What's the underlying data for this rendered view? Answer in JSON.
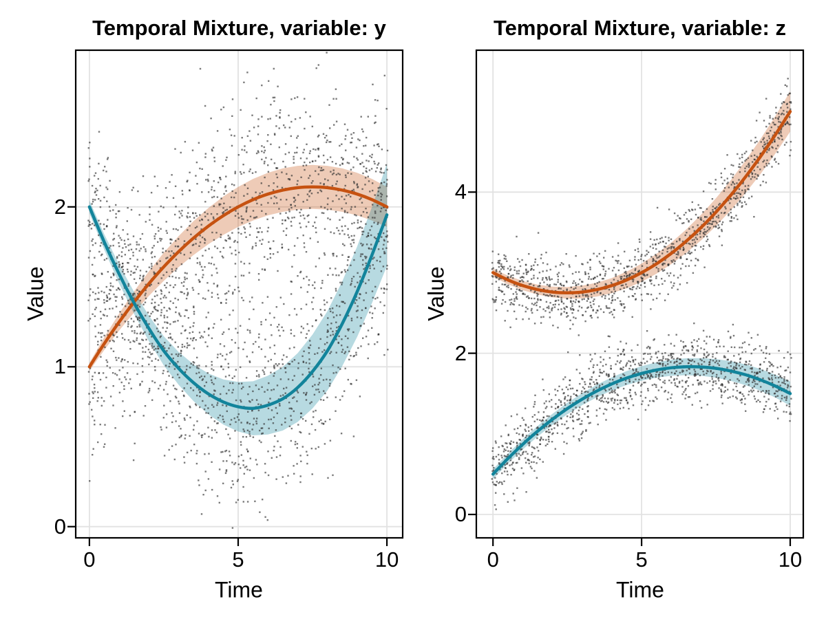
{
  "figure": {
    "background": "#ffffff",
    "colors": {
      "component_orange": "#C65211",
      "component_teal": "#12849B",
      "scatter_point": "#333333",
      "gridline": "#E2E2E2",
      "axis_border": "#000000",
      "text": "#000000"
    }
  },
  "chart_data": [
    {
      "type": "scatter",
      "title": "Temporal Mixture, variable: y",
      "xlabel": "Time",
      "ylabel": "Value",
      "xticks": [
        0,
        5,
        10
      ],
      "yticks": [
        0,
        1,
        2
      ],
      "xlim": [
        -0.46,
        10.53
      ],
      "ylim": [
        -0.07,
        2.98
      ],
      "grid": true,
      "legend": "none",
      "t": [
        0,
        0.5,
        1,
        1.5,
        2,
        2.5,
        3,
        3.5,
        4,
        4.5,
        5,
        5.5,
        6,
        6.5,
        7,
        7.5,
        8,
        8.5,
        9,
        9.5,
        10
      ],
      "series": [
        {
          "name": "component-orange",
          "color": "#C65211",
          "mean": [
            1.0,
            1.145,
            1.28,
            1.405,
            1.52,
            1.625,
            1.72,
            1.805,
            1.88,
            1.945,
            2.0,
            2.045,
            2.08,
            2.105,
            2.12,
            2.125,
            2.12,
            2.105,
            2.08,
            2.045,
            2.0
          ],
          "ci_half_width": [
            0.025,
            0.04,
            0.053,
            0.066,
            0.077,
            0.088,
            0.097,
            0.106,
            0.113,
            0.12,
            0.125,
            0.13,
            0.133,
            0.136,
            0.137,
            0.138,
            0.137,
            0.136,
            0.133,
            0.13,
            0.125
          ]
        },
        {
          "name": "component-teal",
          "color": "#12849B",
          "mean": [
            2.0,
            1.78,
            1.58,
            1.4,
            1.24,
            1.1,
            0.99,
            0.9,
            0.83,
            0.78,
            0.75,
            0.74,
            0.76,
            0.8,
            0.87,
            0.97,
            1.1,
            1.27,
            1.47,
            1.7,
            1.95
          ],
          "ci_half_width": [
            0.04,
            0.049,
            0.059,
            0.069,
            0.08,
            0.091,
            0.103,
            0.115,
            0.128,
            0.141,
            0.155,
            0.169,
            0.184,
            0.199,
            0.215,
            0.231,
            0.248,
            0.265,
            0.283,
            0.301,
            0.32
          ]
        }
      ],
      "scatter": {
        "time_step": 0.1,
        "points_per_time_per_component": 12,
        "noise_sd": 0.32,
        "x_jitter": 0.035,
        "seed": 101
      }
    },
    {
      "type": "scatter",
      "title": "Temporal Mixture, variable: z",
      "xlabel": "Time",
      "ylabel": "Value",
      "xticks": [
        0,
        5,
        10
      ],
      "yticks": [
        0,
        2,
        4
      ],
      "xlim": [
        -0.56,
        10.44
      ],
      "ylim": [
        -0.29,
        5.76
      ],
      "grid": true,
      "legend": "none",
      "t": [
        0,
        0.5,
        1,
        1.5,
        2,
        2.5,
        3,
        3.5,
        4,
        4.5,
        5,
        5.5,
        6,
        6.5,
        7,
        7.5,
        8,
        8.5,
        9,
        9.5,
        10
      ],
      "series": [
        {
          "name": "component-orange",
          "color": "#C65211",
          "mean": [
            3.0,
            2.91,
            2.84,
            2.79,
            2.76,
            2.75,
            2.76,
            2.79,
            2.84,
            2.91,
            3.0,
            3.11,
            3.24,
            3.39,
            3.56,
            3.75,
            3.96,
            4.19,
            4.44,
            4.71,
            5.0
          ],
          "ci_half_width": [
            0.05,
            0.053,
            0.057,
            0.061,
            0.066,
            0.072,
            0.079,
            0.086,
            0.094,
            0.103,
            0.113,
            0.123,
            0.134,
            0.146,
            0.159,
            0.172,
            0.186,
            0.201,
            0.217,
            0.233,
            0.25
          ]
        },
        {
          "name": "component-teal",
          "color": "#12849B",
          "mean": [
            0.5,
            0.693,
            0.87,
            1.033,
            1.18,
            1.313,
            1.43,
            1.533,
            1.62,
            1.693,
            1.75,
            1.793,
            1.82,
            1.833,
            1.83,
            1.813,
            1.78,
            1.733,
            1.67,
            1.593,
            1.5
          ],
          "ci_half_width": [
            0.06,
            0.062,
            0.064,
            0.066,
            0.068,
            0.071,
            0.074,
            0.078,
            0.082,
            0.086,
            0.09,
            0.095,
            0.1,
            0.105,
            0.11,
            0.116,
            0.122,
            0.129,
            0.135,
            0.142,
            0.15
          ]
        }
      ],
      "scatter": {
        "time_step": 0.1,
        "points_per_time_per_component": 12,
        "noise_sd": 0.21,
        "x_jitter": 0.035,
        "seed": 202
      }
    }
  ]
}
